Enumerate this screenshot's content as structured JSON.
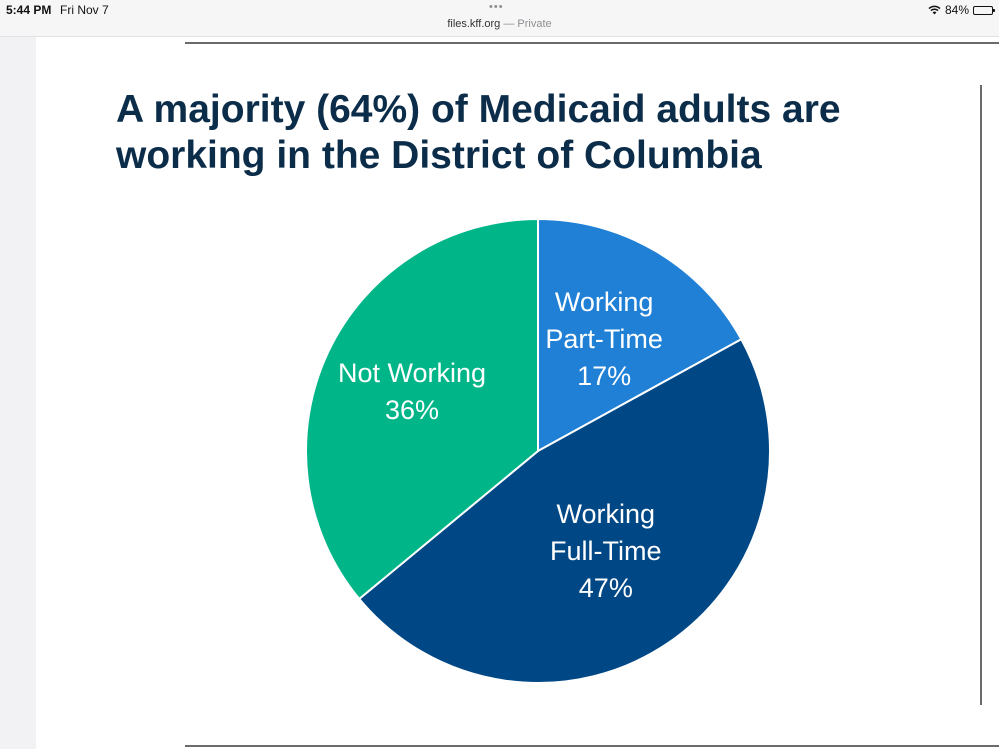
{
  "status_bar": {
    "time": "5:44 PM",
    "date": "Fri Nov 7",
    "url": "files.kff.org",
    "url_suffix": " — Private",
    "battery": "84%",
    "battery_level": 0.84
  },
  "slide": {
    "title_line1": "A majority (64%) of Medicaid adults are",
    "title_line2": "working in the District of Columbia"
  },
  "chart_data": {
    "type": "pie",
    "title": "A majority (64%) of Medicaid adults are working in the District of Columbia",
    "slices": [
      {
        "label_lines": [
          "Working",
          "Part-Time"
        ],
        "value": 17,
        "value_label": "17%",
        "color": "#1f80d6"
      },
      {
        "label_lines": [
          "Working",
          "Full-Time"
        ],
        "value": 47,
        "value_label": "47%",
        "color": "#004785"
      },
      {
        "label_lines": [
          "Not Working"
        ],
        "value": 36,
        "value_label": "36%",
        "color": "#00b689"
      }
    ]
  }
}
